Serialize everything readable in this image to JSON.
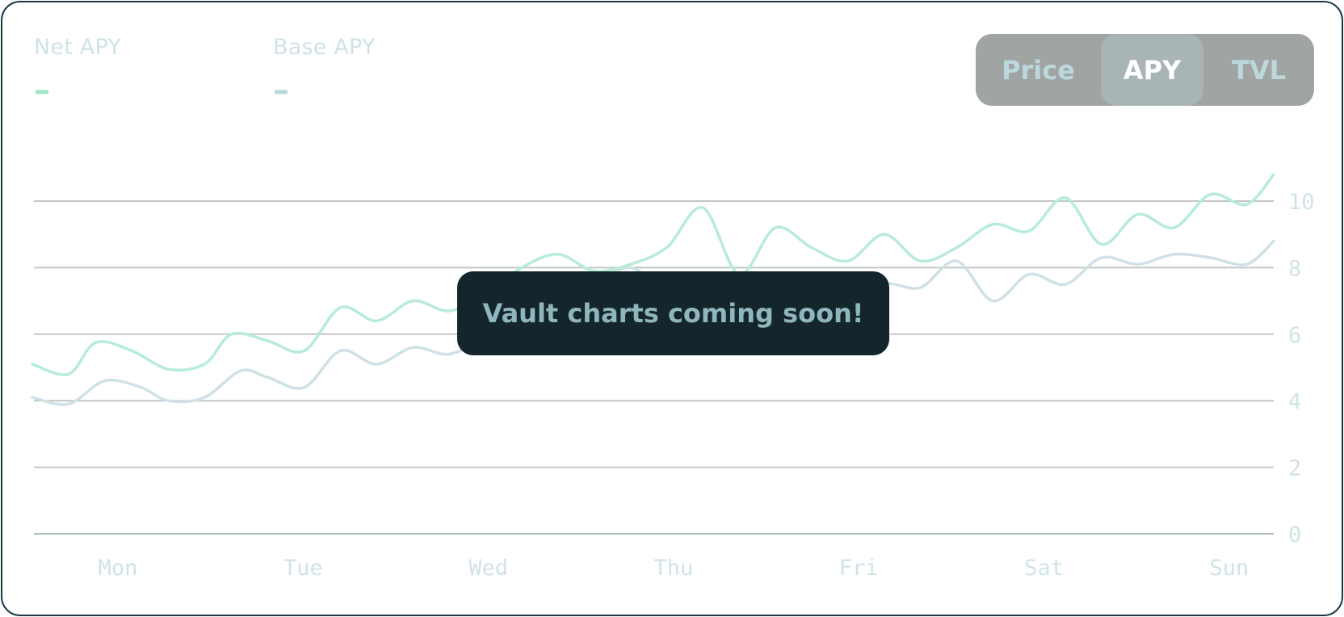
{
  "stats": {
    "net_apy": {
      "label": "Net APY",
      "value": "–",
      "color": "#9ee8c7"
    },
    "base_apy": {
      "label": "Base APY",
      "value": "–",
      "color": "#bcd8df"
    }
  },
  "toggle": {
    "options": [
      {
        "label": "Price",
        "selected": false
      },
      {
        "label": "APY",
        "selected": true
      },
      {
        "label": "TVL",
        "selected": false
      }
    ]
  },
  "overlay": {
    "message": "Vault charts coming soon!"
  },
  "chart_data": {
    "type": "line",
    "x_categories": [
      "Mon",
      "Tue",
      "Wed",
      "Thu",
      "Fri",
      "Sat",
      "Sun"
    ],
    "y_ticks": [
      0,
      2,
      4,
      6,
      8,
      10
    ],
    "ylim": [
      0,
      10.8
    ],
    "grid": true,
    "y_axis_side": "right",
    "series": [
      {
        "key": "net",
        "color": "#b7ecd6",
        "x": [
          0.0,
          0.2,
          0.35,
          0.55,
          0.75,
          0.95,
          1.1,
          1.3,
          1.5,
          1.7,
          1.9,
          2.1,
          2.3,
          2.5,
          2.7,
          2.9,
          3.1,
          3.3,
          3.5,
          3.7,
          3.9,
          4.1,
          4.3,
          4.5,
          4.7,
          4.9,
          5.1,
          5.3,
          5.5,
          5.7,
          5.9,
          6.1,
          6.3,
          6.5,
          6.7,
          6.85
        ],
        "values": [
          5.1,
          4.8,
          5.75,
          5.5,
          4.95,
          5.1,
          6.0,
          5.8,
          5.5,
          6.8,
          6.4,
          7.0,
          6.7,
          7.2,
          8.0,
          8.4,
          7.9,
          8.1,
          8.6,
          9.8,
          7.8,
          9.2,
          8.6,
          8.2,
          9.0,
          8.2,
          8.6,
          9.3,
          9.1,
          10.1,
          8.7,
          9.6,
          9.2,
          10.2,
          9.9,
          10.8
        ]
      },
      {
        "key": "base",
        "color": "#cfe1e6",
        "x": [
          0.0,
          0.2,
          0.4,
          0.6,
          0.75,
          0.95,
          1.15,
          1.3,
          1.5,
          1.7,
          1.9,
          2.1,
          2.3,
          2.5,
          2.7,
          2.9,
          3.1,
          3.3,
          3.5,
          3.7,
          3.9,
          4.1,
          4.3,
          4.5,
          4.7,
          4.9,
          5.1,
          5.3,
          5.5,
          5.7,
          5.9,
          6.1,
          6.3,
          6.5,
          6.7,
          6.85
        ],
        "values": [
          4.1,
          3.9,
          4.6,
          4.4,
          4.0,
          4.1,
          4.9,
          4.7,
          4.4,
          5.5,
          5.1,
          5.6,
          5.4,
          5.9,
          6.6,
          7.2,
          7.5,
          8.0,
          7.3,
          7.6,
          7.0,
          7.2,
          6.7,
          6.8,
          7.5,
          7.4,
          8.2,
          7.0,
          7.8,
          7.5,
          8.3,
          8.1,
          8.4,
          8.3,
          8.1,
          8.8
        ]
      }
    ],
    "colors": {
      "grid": "#c4c6c6",
      "baseline": "#aebec2",
      "tick_label": "#d0e3e7"
    }
  }
}
